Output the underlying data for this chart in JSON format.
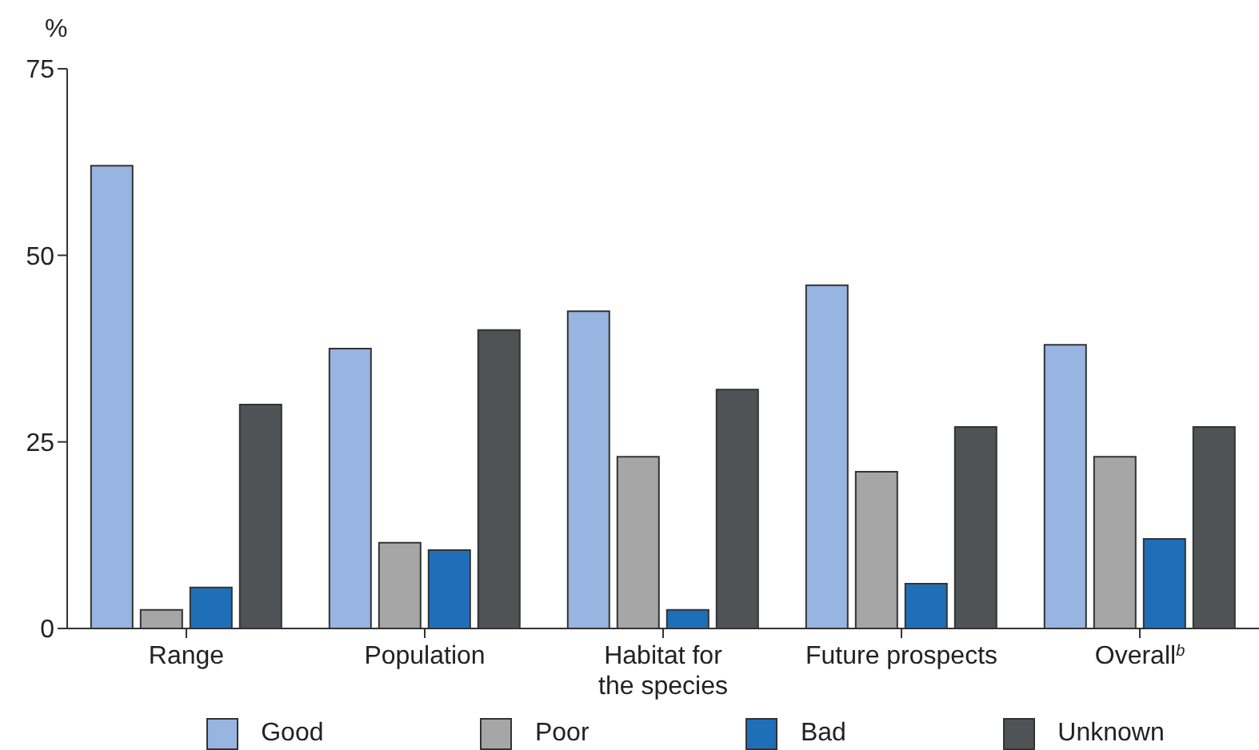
{
  "chart_data": {
    "type": "bar",
    "ylabel": "%",
    "categories": [
      "Range",
      "Population",
      "Habitat for the species",
      "Future prospects",
      "Overall$^{b}$"
    ],
    "series": [
      {
        "name": "Good",
        "color": "#98b4e0",
        "values": [
          62,
          37.5,
          42.5,
          46,
          38
        ]
      },
      {
        "name": "Poor",
        "color": "#a6a6a6",
        "values": [
          2.5,
          11.5,
          23,
          21,
          23
        ]
      },
      {
        "name": "Bad",
        "color": "#1f6fb8",
        "values": [
          5.5,
          10.5,
          2.5,
          6,
          12
        ]
      },
      {
        "name": "Unknown",
        "color": "#505356",
        "values": [
          30,
          40,
          32,
          27,
          27
        ]
      }
    ],
    "ylim": [
      0,
      75
    ],
    "yticks": [
      0,
      25,
      50,
      75
    ],
    "grid": false,
    "legend": "bottom"
  }
}
